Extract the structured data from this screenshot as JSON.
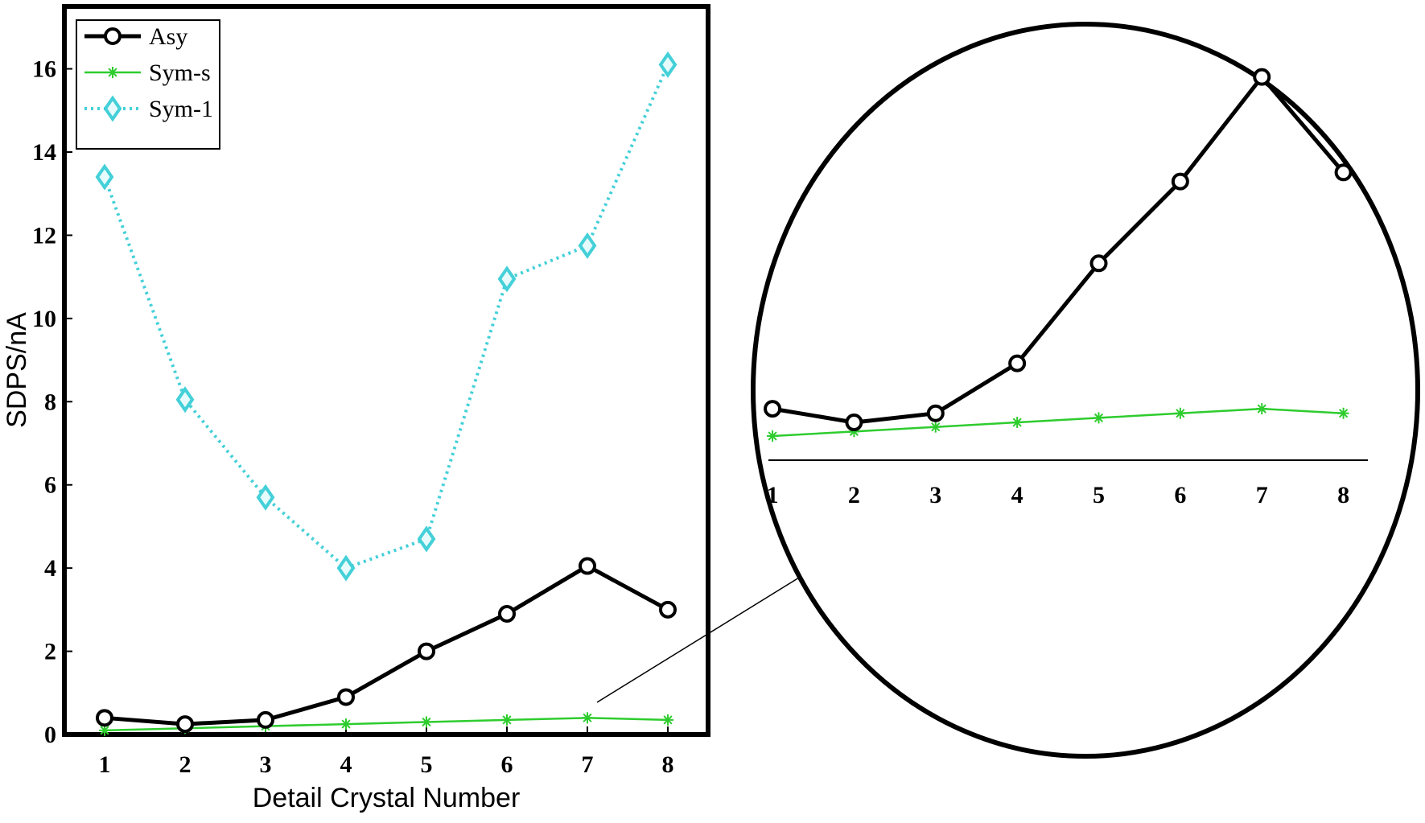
{
  "chart_data": {
    "type": "line",
    "xlabel": "Detail Crystal Number",
    "ylabel": "SDPS/nA",
    "x": [
      1,
      2,
      3,
      4,
      5,
      6,
      7,
      8
    ],
    "xlim": [
      0.5,
      8.5
    ],
    "ylim": [
      0,
      17.5
    ],
    "yticks": [
      0,
      2,
      4,
      6,
      8,
      10,
      12,
      14,
      16
    ],
    "grid": false,
    "legend": "top-left",
    "series": [
      {
        "name": "Asy",
        "values": [
          0.4,
          0.25,
          0.35,
          0.9,
          2.0,
          2.9,
          4.05,
          3.0
        ],
        "color": "#000000",
        "marker": "circle",
        "line": "solid"
      },
      {
        "name": "Sym-s",
        "values": [
          0.1,
          0.15,
          0.2,
          0.25,
          0.3,
          0.35,
          0.4,
          0.35
        ],
        "color": "#2ecc2e",
        "marker": "star",
        "line": "solid"
      },
      {
        "name": "Sym-1",
        "values": [
          13.4,
          8.05,
          5.7,
          4.0,
          4.7,
          10.95,
          11.75,
          16.1
        ],
        "color": "#44d0d8",
        "marker": "diamond",
        "line": "dotted"
      }
    ],
    "inset": {
      "description_free": true,
      "x": [
        1,
        2,
        3,
        4,
        5,
        6,
        7,
        8
      ],
      "series_names": [
        "Asy",
        "Sym-s"
      ]
    }
  }
}
